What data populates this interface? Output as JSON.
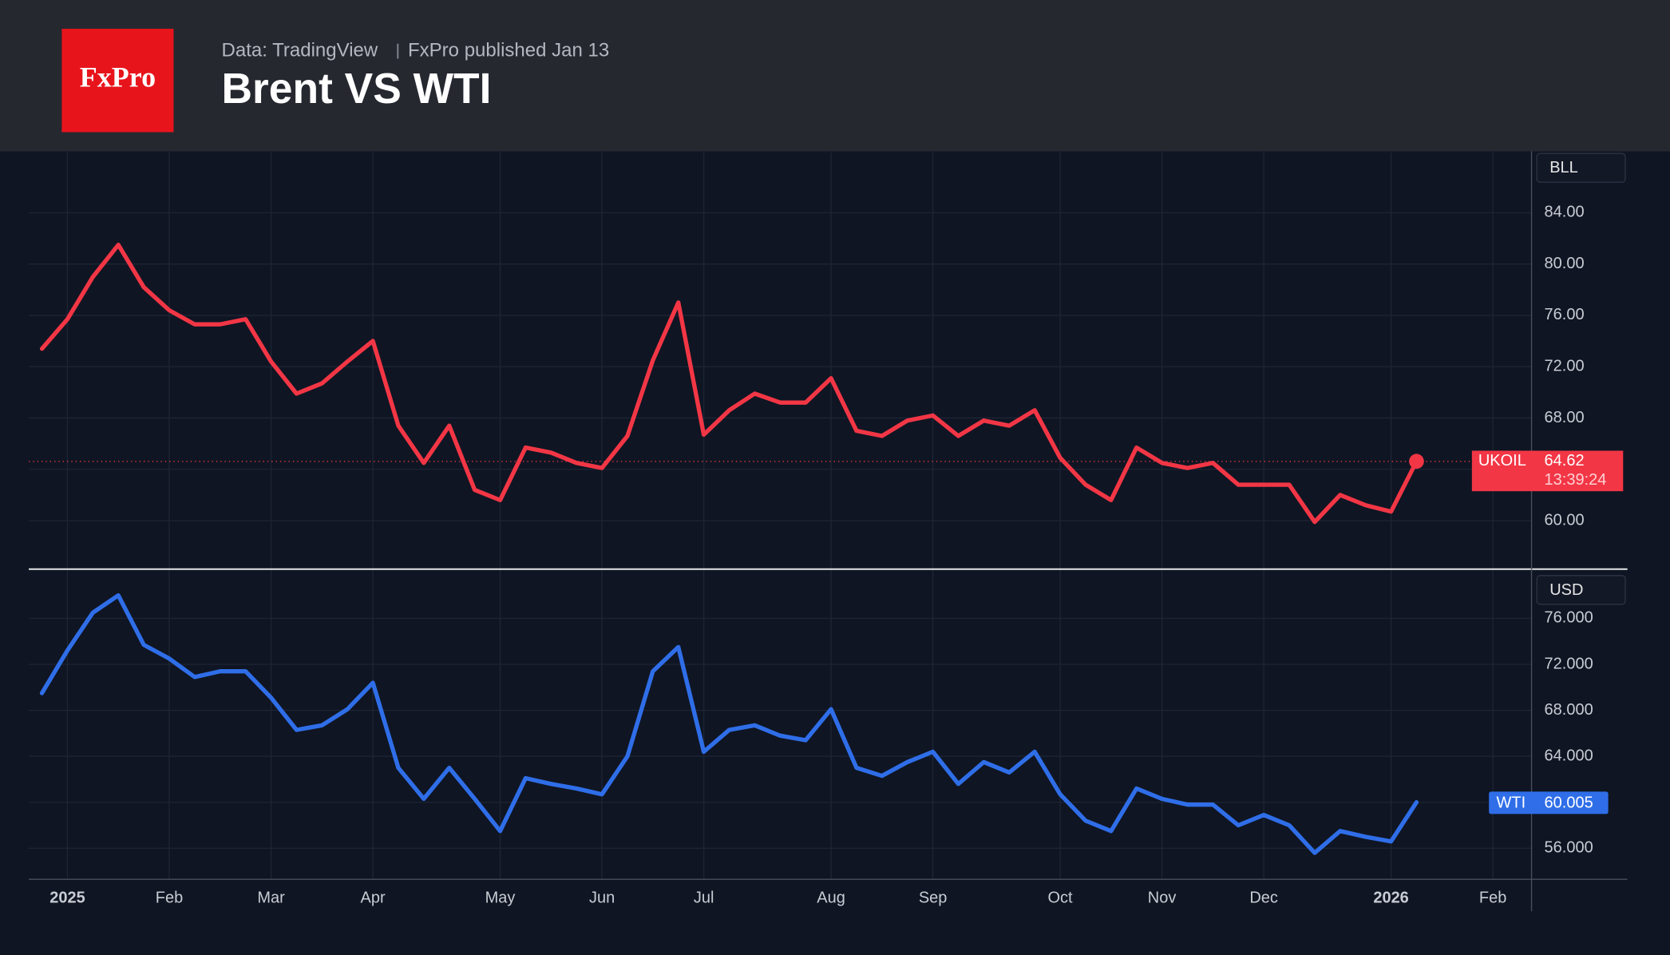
{
  "header": {
    "logo": "FxPro",
    "source": "Data: TradingView",
    "published": "FxPro published Jan 13",
    "title": "Brent VS WTI"
  },
  "chart_data": [
    {
      "type": "line",
      "currency": "BLL",
      "grid": true,
      "ylim": [
        56.3,
        88.7
      ],
      "yticks": [
        {
          "value": 84,
          "label": "84.00"
        },
        {
          "value": 80,
          "label": "80.00"
        },
        {
          "value": 76,
          "label": "76.00"
        },
        {
          "value": 72,
          "label": "72.00"
        },
        {
          "value": 68,
          "label": "68.00"
        },
        {
          "value": 64,
          "label": "64.00"
        },
        {
          "value": 60,
          "label": "60.00"
        }
      ],
      "series": [
        {
          "name": "UKOIL",
          "color": "#f23645",
          "values": [
            73.4,
            75.7,
            79.0,
            81.5,
            78.2,
            76.4,
            75.3,
            75.3,
            75.7,
            72.4,
            69.9,
            70.7,
            72.4,
            74.0,
            67.4,
            64.5,
            67.4,
            62.4,
            61.6,
            65.7,
            65.3,
            64.5,
            64.1,
            66.6,
            72.5,
            77.0,
            66.7,
            68.6,
            69.9,
            69.2,
            69.2,
            71.1,
            67.0,
            66.6,
            67.8,
            68.2,
            66.6,
            67.8,
            67.4,
            68.6,
            64.9,
            62.8,
            61.6,
            65.7,
            64.5,
            64.1,
            64.5,
            62.8,
            62.8,
            62.8,
            59.9,
            62.0,
            61.2,
            60.7,
            64.62,
            null,
            null,
            null,
            null
          ]
        }
      ],
      "annotations": [
        "13:39:24"
      ]
    },
    {
      "type": "line",
      "currency": "USD",
      "grid": true,
      "ylim": [
        53.3,
        80.0
      ],
      "yticks": [
        {
          "value": 76,
          "label": "76.000"
        },
        {
          "value": 72,
          "label": "72.000"
        },
        {
          "value": 68,
          "label": "68.000"
        },
        {
          "value": 64,
          "label": "64.000"
        },
        {
          "value": 60,
          "label": "60.000"
        },
        {
          "value": 56,
          "label": "56.000"
        }
      ],
      "categories": [
        null,
        "2025",
        null,
        null,
        null,
        "Feb",
        null,
        null,
        null,
        "Mar",
        null,
        null,
        null,
        "Apr",
        null,
        null,
        null,
        null,
        "May",
        null,
        null,
        null,
        "Jun",
        null,
        null,
        null,
        "Jul",
        null,
        null,
        null,
        null,
        "Aug",
        null,
        null,
        null,
        "Sep",
        null,
        null,
        null,
        null,
        "Oct",
        null,
        null,
        null,
        "Nov",
        null,
        null,
        null,
        "Dec",
        null,
        null,
        null,
        null,
        "2026",
        null,
        null,
        null,
        "Feb",
        null
      ],
      "series": [
        {
          "name": "WTI",
          "color": "#2f6ee8",
          "values": [
            69.5,
            73.2,
            76.5,
            78.0,
            73.7,
            72.5,
            70.9,
            71.4,
            71.4,
            69.1,
            66.3,
            66.7,
            68.1,
            70.4,
            63.0,
            60.3,
            63.0,
            60.3,
            57.5,
            62.1,
            61.6,
            61.2,
            60.7,
            64.0,
            71.4,
            73.5,
            64.4,
            66.3,
            66.7,
            65.8,
            65.4,
            68.1,
            63.0,
            62.3,
            63.5,
            64.4,
            61.6,
            63.5,
            62.6,
            64.4,
            60.7,
            58.4,
            57.5,
            61.2,
            60.3,
            59.8,
            59.8,
            58.0,
            58.9,
            58.0,
            55.6,
            57.5,
            57.0,
            56.6,
            60.005,
            null,
            null,
            null,
            null
          ]
        }
      ]
    }
  ]
}
